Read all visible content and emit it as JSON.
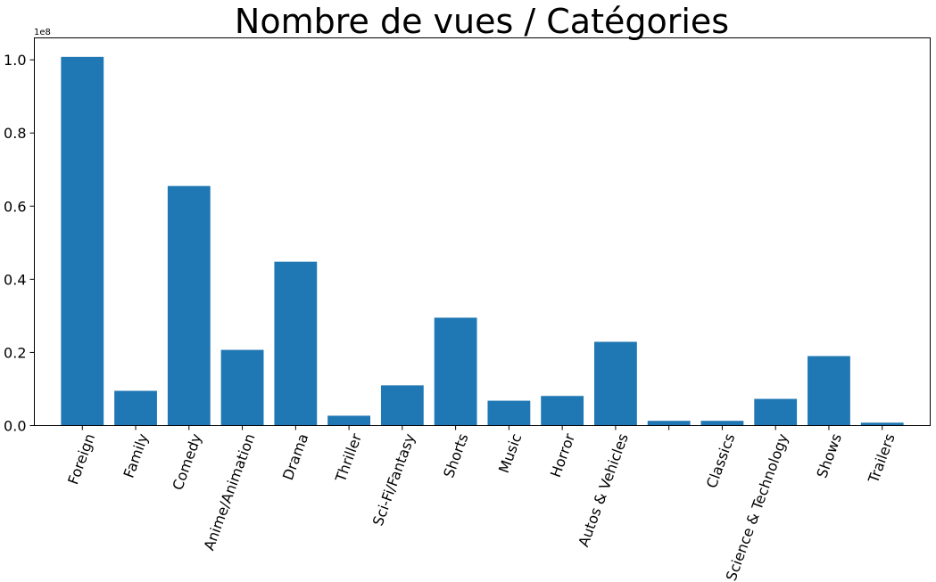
{
  "chart_data": {
    "type": "bar",
    "title": "Nombre de vues / Catégories",
    "xlabel": "",
    "ylabel": "",
    "y_offset_label": "1e8",
    "y_scale_factor": 100000000,
    "ylim": [
      0,
      1.06
    ],
    "yticks": [
      0.0,
      0.2,
      0.4,
      0.6,
      0.8,
      1.0
    ],
    "ytick_labels": [
      "0.0",
      "0.2",
      "0.4",
      "0.6",
      "0.8",
      "1.0"
    ],
    "grid": false,
    "legend": "none",
    "bar_color": "#1f77b4",
    "categories": [
      "Foreign",
      "Family",
      "Comedy",
      "Anime/Animation",
      "Drama",
      "Thriller",
      "Sci-Fi/Fantasy",
      "Shorts",
      "Music",
      "Horror",
      "Autos & Vehicles",
      "",
      "Classics",
      "Science & Technology",
      "Shows",
      "Trailers"
    ],
    "values": [
      1.008,
      0.095,
      0.655,
      0.207,
      0.448,
      0.027,
      0.11,
      0.295,
      0.068,
      0.081,
      0.229,
      0.013,
      0.013,
      0.073,
      0.19,
      0.008
    ]
  }
}
